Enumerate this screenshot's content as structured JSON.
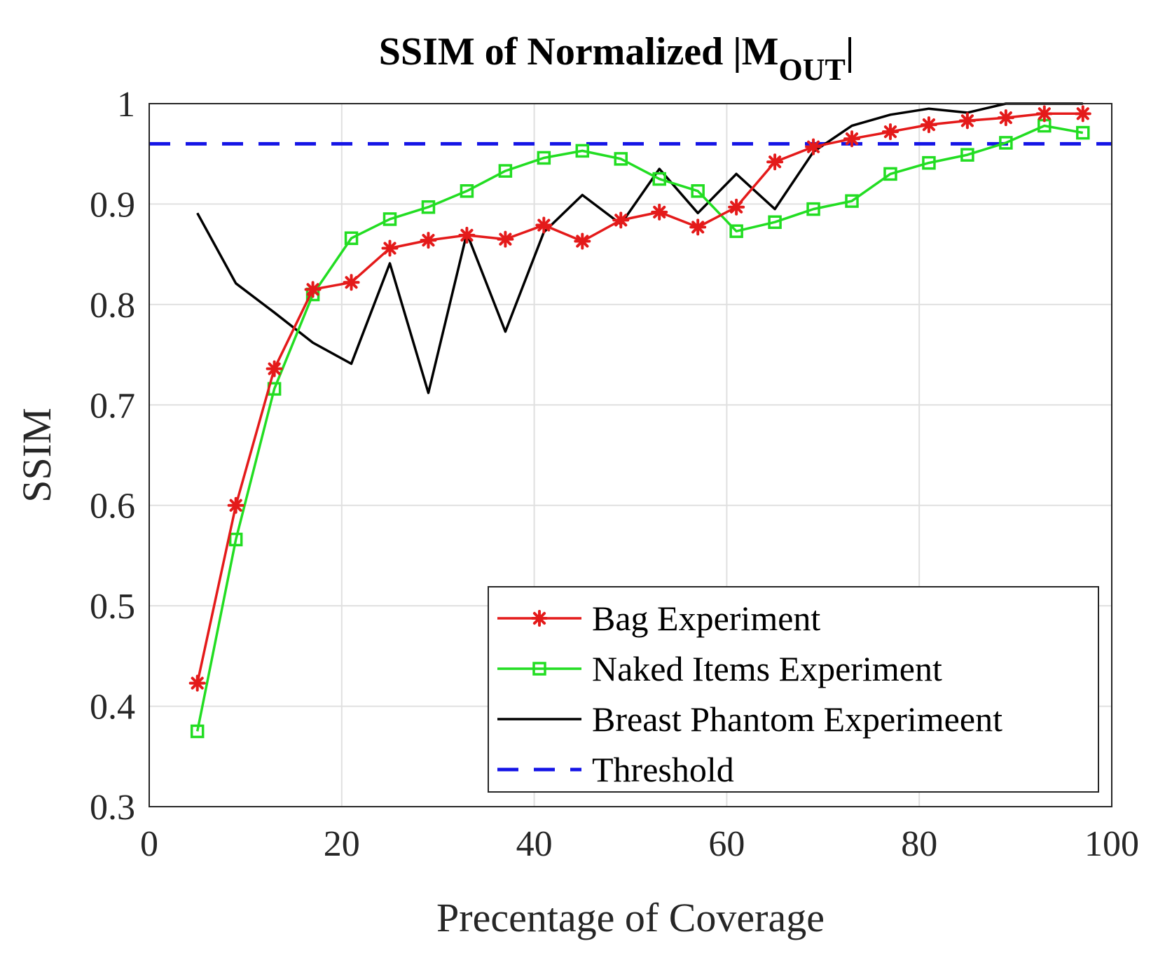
{
  "chart_data": {
    "type": "line",
    "title": "SSIM of Normalized |M",
    "title_subscript": "OUT",
    "title_suffix": "|",
    "xlabel": "Precentage of Coverage",
    "ylabel": "SSIM",
    "xlim": [
      0,
      100
    ],
    "ylim": [
      0.3,
      1.0
    ],
    "xticks": [
      0,
      20,
      40,
      60,
      80,
      100
    ],
    "xtick_labels": [
      "0",
      "20",
      "40",
      "60",
      "80",
      "100"
    ],
    "yticks": [
      0.3,
      0.4,
      0.5,
      0.6,
      0.7,
      0.8,
      0.9,
      1.0
    ],
    "ytick_labels": [
      "0.3",
      "0.4",
      "0.5",
      "0.6",
      "0.7",
      "0.8",
      "0.9",
      "1"
    ],
    "grid": true,
    "legend_position": "bottom-right",
    "series": [
      {
        "name": "Bag Experiment",
        "color": "#e41a1a",
        "marker": "asterisk",
        "dashed": false,
        "x": [
          5,
          9,
          13,
          17,
          21,
          25,
          29,
          33,
          37,
          41,
          45,
          49,
          53,
          57,
          61,
          65,
          69,
          73,
          77,
          81,
          85,
          89,
          93,
          97
        ],
        "y": [
          0.423,
          0.6,
          0.736,
          0.815,
          0.822,
          0.856,
          0.864,
          0.869,
          0.865,
          0.879,
          0.863,
          0.884,
          0.892,
          0.877,
          0.897,
          0.942,
          0.957,
          0.965,
          0.972,
          0.979,
          0.983,
          0.986,
          0.99,
          0.99
        ]
      },
      {
        "name": "Naked Items Experiment",
        "color": "#22dd22",
        "marker": "square",
        "dashed": false,
        "x": [
          5,
          9,
          13,
          17,
          21,
          25,
          29,
          33,
          37,
          41,
          45,
          49,
          53,
          57,
          61,
          65,
          69,
          73,
          77,
          81,
          85,
          89,
          93,
          97
        ],
        "y": [
          0.375,
          0.566,
          0.716,
          0.81,
          0.866,
          0.885,
          0.897,
          0.913,
          0.933,
          0.946,
          0.953,
          0.945,
          0.925,
          0.913,
          0.873,
          0.882,
          0.895,
          0.903,
          0.93,
          0.941,
          0.949,
          0.961,
          0.978,
          0.971
        ]
      },
      {
        "name": "Breast Phantom Experimeent",
        "color": "#000000",
        "marker": "none",
        "dashed": false,
        "x": [
          5,
          9,
          13,
          17,
          21,
          25,
          29,
          33,
          37,
          41,
          45,
          49,
          53,
          57,
          61,
          65,
          69,
          73,
          77,
          81,
          85,
          89,
          93,
          97
        ],
        "y": [
          0.891,
          0.821,
          0.792,
          0.762,
          0.741,
          0.841,
          0.712,
          0.871,
          0.773,
          0.872,
          0.909,
          0.88,
          0.935,
          0.891,
          0.93,
          0.895,
          0.952,
          0.978,
          0.989,
          0.995,
          0.991,
          1.0,
          1.0,
          1.0
        ]
      },
      {
        "name": "Threshold",
        "color": "#1414e6",
        "marker": "none",
        "dashed": true,
        "x": [
          0,
          100
        ],
        "y": [
          0.96,
          0.96
        ]
      }
    ]
  }
}
